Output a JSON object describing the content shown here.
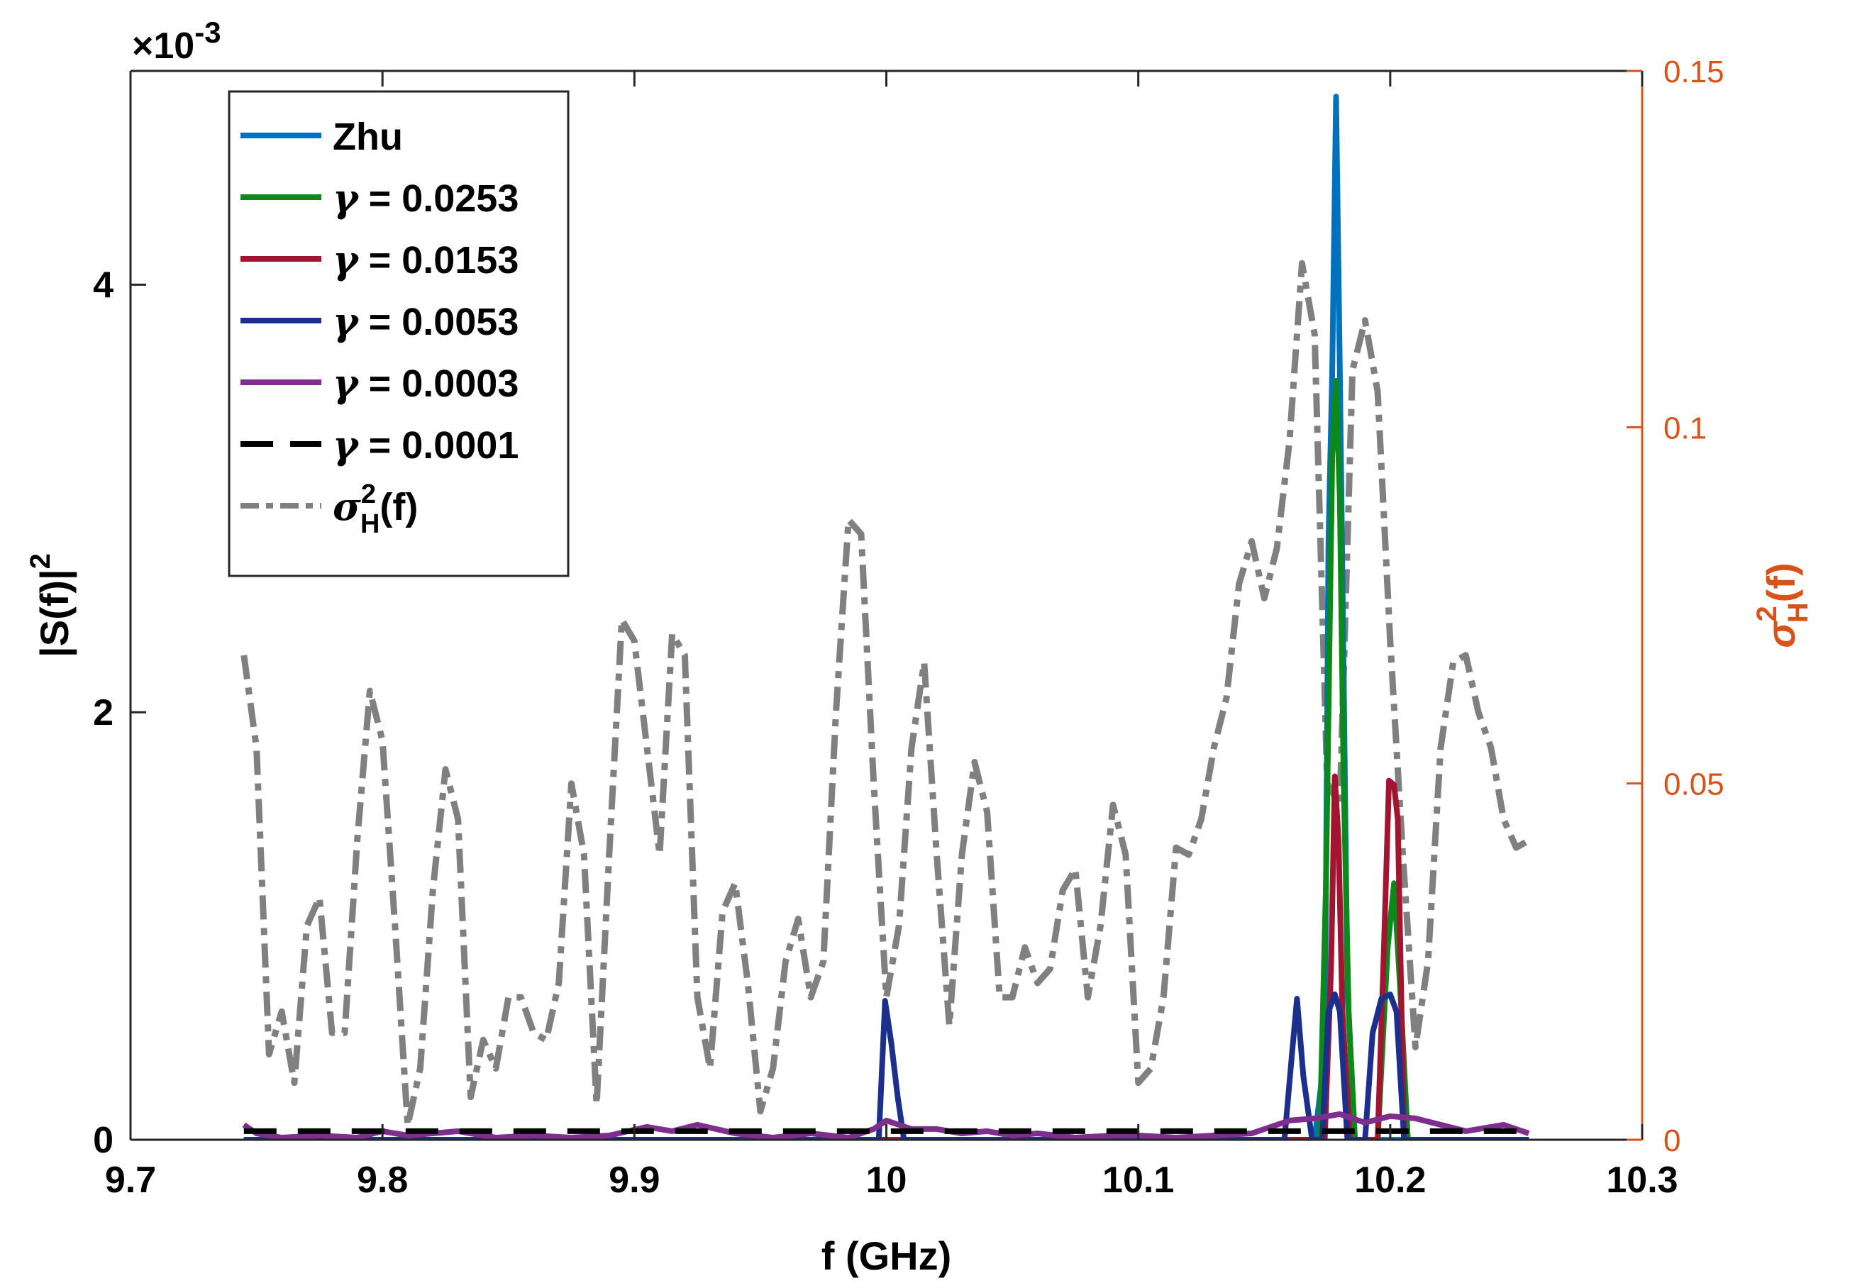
{
  "chart_data": {
    "type": "line",
    "x_label_main": "f (GHz)",
    "x_ticks": [
      "9.7",
      "9.8",
      "9.9",
      "10",
      "10.1",
      "10.2",
      "10.3"
    ],
    "x_tick_values": [
      9.7,
      9.8,
      9.9,
      10.0,
      10.1,
      10.2,
      10.3
    ],
    "xlim": [
      9.7,
      10.3
    ],
    "left_axis": {
      "label": "|S(f)|",
      "label_superscript": "2",
      "ylim": [
        0,
        0.005
      ],
      "ticks": [
        "0",
        "2",
        "4"
      ],
      "tick_values": [
        0,
        0.002,
        0.004
      ],
      "exponent_prefix": "×10",
      "exponent_power": "-3"
    },
    "right_axis": {
      "label": "σ",
      "label_superscript": "2",
      "label_subscript": "H",
      "label_suffix": "(f)",
      "ylim": [
        0,
        0.15
      ],
      "ticks": [
        "0",
        "0.05",
        "0.1",
        "0.15"
      ],
      "tick_values": [
        0,
        0.05,
        0.1,
        0.15
      ],
      "color": "#d95319"
    },
    "series": [
      {
        "name": "Zhu",
        "axis": "left",
        "color": "#0072bd",
        "dash": "",
        "x": [
          9.745,
          10.17,
          10.174,
          10.1755,
          10.177,
          10.1785,
          10.18,
          10.1815,
          10.183,
          10.186,
          10.255
        ],
        "y": [
          0,
          0,
          0.0004,
          0.0028,
          0.0036,
          0.00488,
          0.0036,
          0.0022,
          0.0007,
          0,
          0
        ]
      },
      {
        "name": "γ = 0.0253",
        "axis": "left",
        "color": "#0b8a1a",
        "dash": "",
        "x": [
          9.745,
          10.172,
          10.1745,
          10.177,
          10.1785,
          10.18,
          10.1815,
          10.1835,
          10.186,
          10.195,
          10.199,
          10.2015,
          10.204,
          10.207,
          10.255
        ],
        "y": [
          0,
          0,
          0.0012,
          0.0032,
          0.00355,
          0.003,
          0.0017,
          0.0006,
          0,
          0,
          0.0009,
          0.0012,
          0.0007,
          0,
          0
        ]
      },
      {
        "name": "γ = 0.0153",
        "axis": "left",
        "color": "#a2142f",
        "dash": "",
        "x": [
          9.745,
          10.174,
          10.1765,
          10.178,
          10.1795,
          10.181,
          10.184,
          10.195,
          10.1975,
          10.1995,
          10.2015,
          10.203,
          10.2055,
          10.255
        ],
        "y": [
          0,
          0,
          0.0008,
          0.0017,
          0.0014,
          0.0006,
          0,
          0,
          0.0009,
          0.00168,
          0.00166,
          0.0015,
          0,
          0
        ]
      },
      {
        "name": "γ = 0.0053",
        "axis": "left",
        "color": "#1b2f8c",
        "dash": "",
        "x": [
          9.745,
          9.997,
          9.9995,
          10.002,
          10.0045,
          10.007,
          10.158,
          10.161,
          10.163,
          10.1655,
          10.169,
          10.173,
          10.1755,
          10.178,
          10.18,
          10.183,
          10.19,
          10.193,
          10.1965,
          10.2,
          10.2025,
          10.2055,
          10.255
        ],
        "y": [
          0,
          0,
          0.00065,
          0.00045,
          0.0002,
          0,
          0,
          0.0004,
          0.00066,
          0.0003,
          0,
          0,
          0.0006,
          0.00068,
          0.0006,
          0,
          0,
          0.0005,
          0.00066,
          0.00068,
          0.0006,
          0,
          0
        ]
      },
      {
        "name": "γ = 0.0003",
        "axis": "left",
        "color": "#7e2f8e",
        "dash": "",
        "x": [
          9.745,
          9.75,
          9.76,
          9.775,
          9.79,
          9.8,
          9.81,
          9.82,
          9.83,
          9.845,
          9.86,
          9.875,
          9.89,
          9.905,
          9.915,
          9.925,
          9.94,
          9.955,
          9.97,
          9.985,
          9.995,
          10.0,
          10.01,
          10.02,
          10.03,
          10.04,
          10.05,
          10.06,
          10.075,
          10.09,
          10.1,
          10.115,
          10.13,
          10.145,
          10.16,
          10.17,
          10.18,
          10.19,
          10.2,
          10.21,
          10.22,
          10.23,
          10.24,
          10.245,
          10.255
        ],
        "y": [
          7e-05,
          3e-05,
          1e-05,
          2e-05,
          1e-05,
          4e-05,
          2e-05,
          3e-05,
          4e-05,
          1e-05,
          2e-05,
          1e-05,
          2e-05,
          6e-05,
          4e-05,
          7e-05,
          3e-05,
          1e-05,
          3e-05,
          1e-05,
          5e-05,
          9e-05,
          5e-05,
          5e-05,
          3e-05,
          4e-05,
          2e-05,
          3e-05,
          1e-05,
          2e-05,
          2e-05,
          1e-05,
          2e-05,
          3e-05,
          9e-05,
          0.0001,
          0.00012,
          8e-05,
          0.00011,
          0.0001,
          7e-05,
          4e-05,
          6e-05,
          7e-05,
          3e-05
        ]
      },
      {
        "name": "γ = 0.0001",
        "axis": "left",
        "color": "#000000",
        "dash": "46 30",
        "x": [
          9.745,
          10.255
        ],
        "y": [
          4e-05,
          4e-05
        ]
      },
      {
        "name": "σ²H(f)",
        "axis": "right",
        "color": "#808080",
        "dash": "34 12 10 12",
        "x": [
          9.745,
          9.75,
          9.755,
          9.76,
          9.765,
          9.77,
          9.775,
          9.78,
          9.785,
          9.79,
          9.795,
          9.8,
          9.805,
          9.81,
          9.815,
          9.82,
          9.825,
          9.83,
          9.835,
          9.84,
          9.845,
          9.85,
          9.855,
          9.86,
          9.865,
          9.87,
          9.875,
          9.88,
          9.885,
          9.89,
          9.895,
          9.9,
          9.905,
          9.91,
          9.915,
          9.92,
          9.925,
          9.93,
          9.935,
          9.94,
          9.945,
          9.95,
          9.955,
          9.96,
          9.965,
          9.97,
          9.975,
          9.98,
          9.985,
          9.99,
          9.995,
          10.0,
          10.005,
          10.01,
          10.015,
          10.02,
          10.025,
          10.03,
          10.035,
          10.04,
          10.045,
          10.05,
          10.055,
          10.06,
          10.065,
          10.07,
          10.075,
          10.08,
          10.085,
          10.09,
          10.095,
          10.1,
          10.105,
          10.11,
          10.115,
          10.12,
          10.125,
          10.13,
          10.135,
          10.14,
          10.145,
          10.15,
          10.155,
          10.16,
          10.165,
          10.17,
          10.175,
          10.18,
          10.185,
          10.19,
          10.195,
          10.2,
          10.205,
          10.21,
          10.215,
          10.22,
          10.225,
          10.23,
          10.235,
          10.24,
          10.245,
          10.25,
          10.255
        ],
        "y": [
          0.068,
          0.055,
          0.012,
          0.018,
          0.008,
          0.03,
          0.034,
          0.015,
          0.015,
          0.042,
          0.063,
          0.056,
          0.03,
          0.002,
          0.01,
          0.035,
          0.052,
          0.045,
          0.006,
          0.014,
          0.01,
          0.02,
          0.02,
          0.015,
          0.014,
          0.022,
          0.05,
          0.04,
          0.005,
          0.04,
          0.073,
          0.07,
          0.055,
          0.04,
          0.071,
          0.068,
          0.02,
          0.01,
          0.032,
          0.036,
          0.022,
          0.004,
          0.01,
          0.025,
          0.031,
          0.02,
          0.025,
          0.06,
          0.087,
          0.085,
          0.05,
          0.02,
          0.03,
          0.055,
          0.067,
          0.04,
          0.016,
          0.04,
          0.053,
          0.046,
          0.02,
          0.02,
          0.027,
          0.022,
          0.024,
          0.035,
          0.038,
          0.02,
          0.03,
          0.047,
          0.04,
          0.008,
          0.01,
          0.02,
          0.041,
          0.04,
          0.045,
          0.055,
          0.062,
          0.078,
          0.084,
          0.076,
          0.083,
          0.098,
          0.123,
          0.113,
          0.05,
          0.047,
          0.108,
          0.115,
          0.105,
          0.07,
          0.04,
          0.013,
          0.025,
          0.055,
          0.067,
          0.068,
          0.06,
          0.055,
          0.045,
          0.041,
          0.042
        ]
      }
    ],
    "legend_placement": "top-left",
    "grid": false
  }
}
